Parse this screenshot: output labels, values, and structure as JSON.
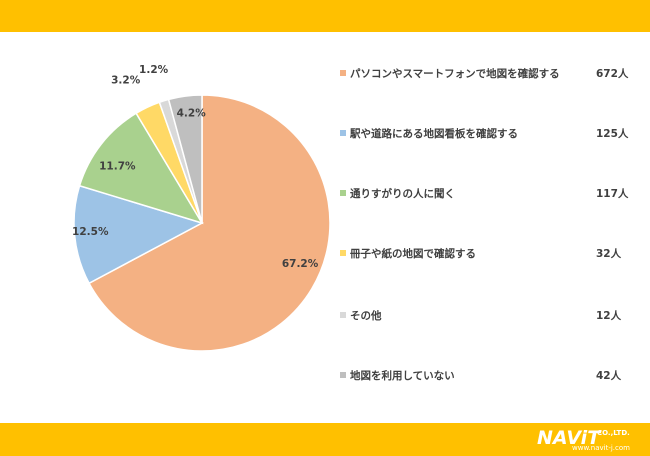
{
  "chart_data": {
    "type": "pie",
    "title": "",
    "slices": [
      {
        "label": "パソコンやスマートフォンで地図を確認する",
        "count": "672人",
        "percent": 67.2,
        "percent_label": "67.2%",
        "color": "#f4b183"
      },
      {
        "label": "駅や道路にある地図看板を確認する",
        "count": "125人",
        "percent": 12.5,
        "percent_label": "12.5%",
        "color": "#9dc3e6"
      },
      {
        "label": "通りすがりの人に聞く",
        "count": "117人",
        "percent": 11.7,
        "percent_label": "11.7%",
        "color": "#a9d18e"
      },
      {
        "label": "冊子や紙の地図で確認する",
        "count": "32人",
        "percent": 3.2,
        "percent_label": "3.2%",
        "color": "#ffd966"
      },
      {
        "label": "その他",
        "count": "12人",
        "percent": 1.2,
        "percent_label": "1.2%",
        "color": "#d9d9d9"
      },
      {
        "label": "地図を利用していない",
        "count": "42人",
        "percent": 4.2,
        "percent_label": "4.2%",
        "color": "#bfbfbf"
      }
    ],
    "legend_position": "right"
  },
  "colors": {
    "banner": "#ffc000",
    "label_text": "#404040"
  },
  "logo": {
    "name": "NAViT",
    "suffix": "CO.,LTD.",
    "url": "www.navit-j.com"
  }
}
